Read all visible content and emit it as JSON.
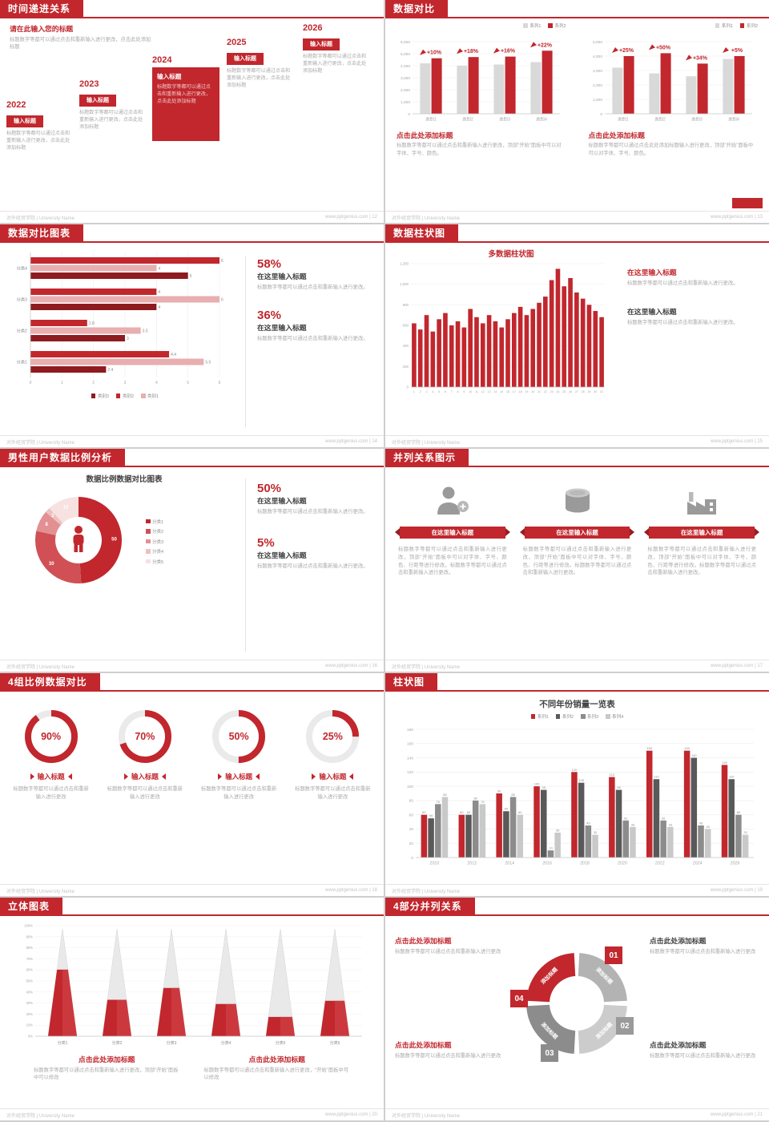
{
  "theme": {
    "accent": "#c1272d",
    "dark_text": "#404040",
    "gray_text": "#ababab",
    "light_bar": "#d9d9d9"
  },
  "footer": {
    "left": "对外经贸学院 | University Name",
    "site": "www.pptgenius.com"
  },
  "s12": {
    "title": "时间递进关系",
    "page": "12",
    "intro_title": "请在此输入您的标题",
    "intro_text": "标题数字等都可以通过点击和重新输入进行更改，点击此处添加标题",
    "items": [
      {
        "year": "2022",
        "tag": "输入标题",
        "body": "标题数字等都可以通过点击和重新输入进行更改，点击此处添加标题",
        "highlight": false
      },
      {
        "year": "2023",
        "tag": "输入标题",
        "body": "标题数字等都可以通过点击和重新输入进行更改，点击此处添加标题",
        "highlight": false
      },
      {
        "year": "2024",
        "tag": "输入标题",
        "body": "标题数字等都可以通过点击和重新输入进行更改，点击此处添加标题",
        "highlight": true
      },
      {
        "year": "2025",
        "tag": "输入标题",
        "body": "标题数字等都可以通过点击和重新输入进行更改，点击此处添加标题",
        "highlight": false
      },
      {
        "year": "2026",
        "tag": "输入标题",
        "body": "标题数字等都可以通过点击和重新输入进行更改，点击此处添加标题",
        "highlight": false
      }
    ]
  },
  "s13": {
    "title": "数据对比",
    "page": "13",
    "legend": [
      {
        "name": "系列1",
        "color": "#d9d9d9"
      },
      {
        "name": "系列2",
        "color": "#c1272d"
      }
    ],
    "panels": [
      {
        "heading": "点击此处添加标题",
        "body": "标题数字等都可以通过点击和重新输入进行更改，顶部“开始”面板中可以对字体、字号、颜色。",
        "chart": {
          "type": "bar",
          "categories": [
            "类别1",
            "类别2",
            "类别3",
            "类别4"
          ],
          "series": [
            {
              "name": "系列1",
              "color": "#d9d9d9",
              "values": [
                4200,
                4000,
                4100,
                4300
              ]
            },
            {
              "name": "系列2",
              "color": "#c1272d",
              "values": [
                4620,
                4720,
                4760,
                5250
              ]
            }
          ],
          "group_labels": [
            "+10%",
            "+18%",
            "+16%",
            "+22%"
          ],
          "ymax": 6000,
          "yticks": [
            "6,000",
            "5,000",
            "4,000",
            "3,000",
            "2,000",
            "1,000",
            "0"
          ]
        }
      },
      {
        "heading": "点击此处添加标题",
        "body": "标题数字等都可以通过点击此处添加标题输入进行更改，顶部“开始”面板中可以对字体、字号、颜色。",
        "chart": {
          "type": "bar",
          "categories": [
            "类别1",
            "类别2",
            "类别3",
            "类别4"
          ],
          "series": [
            {
              "name": "系列1",
              "color": "#d9d9d9",
              "values": [
                3200,
                2800,
                2600,
                3800
              ]
            },
            {
              "name": "系列2",
              "color": "#c1272d",
              "values": [
                4000,
                4200,
                3480,
                4000
              ]
            }
          ],
          "group_labels": [
            "+25%",
            "+50%",
            "+34%",
            "+5%"
          ],
          "ymax": 5000,
          "yticks": [
            "5,000",
            "4,000",
            "3,000",
            "2,000",
            "1,000",
            "0"
          ]
        }
      }
    ]
  },
  "s14": {
    "title": "数据对比图表",
    "page": "14",
    "legend": [
      {
        "name": "类别3",
        "color": "#8e1b20"
      },
      {
        "name": "类别2",
        "color": "#c1272d"
      },
      {
        "name": "类别1",
        "color": "#e8aeb0"
      }
    ],
    "chart": {
      "type": "bar",
      "orientation": "horizontal",
      "xmax": 6,
      "xticks": [
        "0",
        "1",
        "2",
        "3",
        "4",
        "5",
        "6"
      ],
      "series_colors": [
        "#c1272d",
        "#e8aeb0",
        "#8e1b20"
      ],
      "groups": [
        {
          "label": "分类4",
          "values": [
            6,
            4,
            5
          ]
        },
        {
          "label": "分类3",
          "values": [
            4,
            6,
            4
          ]
        },
        {
          "label": "分类2",
          "values": [
            1.8,
            3.5,
            3
          ]
        },
        {
          "label": "分类1",
          "values": [
            4.4,
            5.5,
            2.4
          ]
        }
      ]
    },
    "stats": [
      {
        "pct": "58%",
        "head": "在这里输入标题",
        "body": "标题数字等都可以通过点击和重新输入进行更改。"
      },
      {
        "pct": "36%",
        "head": "在这里输入标题",
        "body": "标题数字等都可以通过点击和重新输入进行更改。"
      }
    ]
  },
  "s15": {
    "title": "数据柱状图",
    "page": "15",
    "chart": {
      "type": "bar",
      "heading": "多数据柱状图",
      "ymax": 1200,
      "yticks": [
        "1,200",
        "1,000",
        "800",
        "600",
        "400",
        "200",
        "0"
      ],
      "values": [
        620,
        560,
        700,
        540,
        660,
        720,
        600,
        640,
        580,
        760,
        680,
        620,
        700,
        640,
        580,
        660,
        720,
        780,
        700,
        760,
        820,
        880,
        1040,
        1150,
        980,
        1060,
        920,
        860,
        800,
        740,
        680
      ]
    },
    "blocks": [
      {
        "head": "在这里输入标题",
        "body": "标题数字等都可以通过点击和重新输入进行更改。"
      },
      {
        "head": "在这里输入标题",
        "body": "标题数字等都可以通过点击和重新输入进行更改。"
      }
    ]
  },
  "s16": {
    "title": "男性用户数据比例分析",
    "page": "16",
    "chart_title": "数据比例数据对比图表",
    "donut": {
      "type": "pie",
      "values": [
        50,
        30,
        8,
        2,
        12
      ],
      "labels": [
        "50",
        "30",
        "8",
        "2",
        "12"
      ],
      "colors": [
        "#c1272d",
        "#d05056",
        "#e39093",
        "#eec0c1",
        "#f7e1e1"
      ]
    },
    "legend": [
      {
        "name": "分类1",
        "color": "#c1272d"
      },
      {
        "name": "分类2",
        "color": "#d05056"
      },
      {
        "name": "分类3",
        "color": "#e39093"
      },
      {
        "name": "分类4",
        "color": "#eec0c1"
      },
      {
        "name": "分类5",
        "color": "#f7e1e1"
      }
    ],
    "stats": [
      {
        "pct": "50%",
        "head": "在这里输入标题",
        "body": "标题数字等都可以通过点击和重新输入进行更改。"
      },
      {
        "pct": "5%",
        "head": "在这里输入标题",
        "body": "标题数字等都可以通过点击和重新输入进行更改。"
      }
    ]
  },
  "s17": {
    "title": "并列关系图示",
    "page": "17",
    "cols": [
      {
        "icon": "person-plus",
        "head": "在这里输入标题",
        "body": "标题数字等都可以通过点击和重新输入进行更改，顶部“开始”面板中可以对字体、字号、颜色、行距等进行修改。标题数字等都可以通过点击和重新输入进行更改。"
      },
      {
        "icon": "database",
        "head": "在这里输入标题",
        "body": "标题数字等都可以通过点击和重新输入进行更改，顶部“开始”面板中可以对字体、字号、颜色、行距等进行修改。标题数字等都可以通过点击和重新输入进行更改。"
      },
      {
        "icon": "factory",
        "head": "在这里输入标题",
        "body": "标题数字等都可以通过点击和重新输入进行更改，顶部“开始”面板中可以对字体、字号、颜色、行距等进行修改。标题数字等都可以通过点击和重新输入进行更改。"
      }
    ]
  },
  "s18": {
    "title": "4组比例数据对比",
    "page": "18",
    "items": [
      {
        "pct": "90%",
        "value": 90,
        "head": "输入标题",
        "body": "标题数字等都可以通过点击和重新输入进行更改"
      },
      {
        "pct": "70%",
        "value": 70,
        "head": "输入标题",
        "body": "标题数字等都可以通过点击和重新输入进行更改"
      },
      {
        "pct": "50%",
        "value": 50,
        "head": "输入标题",
        "body": "标题数字等都可以通过点击和重新输入进行更改"
      },
      {
        "pct": "25%",
        "value": 25,
        "head": "输入标题",
        "body": "标题数字等都可以通过点击和重新输入进行更改"
      }
    ]
  },
  "s19": {
    "title": "柱状图",
    "page": "19",
    "chart": {
      "type": "bar",
      "heading": "不同年份销量一览表",
      "categories": [
        "2010",
        "2012",
        "2014",
        "2016",
        "2018",
        "2020",
        "2022",
        "2024",
        "2026"
      ],
      "series": [
        {
          "name": "系列1",
          "color": "#c1272d",
          "values": [
            60,
            60,
            90,
            100,
            120,
            113,
            150,
            150,
            130
          ]
        },
        {
          "name": "系列2",
          "color": "#595959",
          "values": [
            55,
            60,
            65,
            95,
            105,
            95,
            110,
            140,
            110
          ]
        },
        {
          "name": "系列3",
          "color": "#8c8c8c",
          "values": [
            75,
            80,
            85,
            10,
            45,
            52,
            52,
            45,
            60
          ]
        },
        {
          "name": "系列4",
          "color": "#c9c9c9",
          "values": [
            85,
            75,
            60,
            35,
            32,
            43,
            43,
            40,
            32
          ]
        }
      ],
      "ymax": 180,
      "yticks": [
        "180",
        "160",
        "140",
        "120",
        "100",
        "80",
        "60",
        "40",
        "20",
        "0"
      ]
    }
  },
  "s20": {
    "title": "立体图表",
    "page": "20",
    "chart": {
      "type": "cone",
      "categories": [
        "分类1",
        "分类2",
        "分类3",
        "分类4",
        "分类5",
        "分类6"
      ],
      "fills": [
        0.62,
        0.34,
        0.45,
        0.3,
        0.18,
        0.33
      ],
      "yticks": [
        "100%",
        "90%",
        "80%",
        "70%",
        "60%",
        "50%",
        "40%",
        "30%",
        "20%",
        "10%",
        "0%"
      ]
    },
    "blocks": [
      {
        "head": "点击此处添加标题",
        "body": "标题数字等都可以通过点击和重新输入进行更改，顶部“开始”面板中可以修改"
      },
      {
        "head": "点击此处添加标题",
        "body": "标题数字等都可以通过点击和重新输入进行更改，“开始”面板中可以修改"
      }
    ]
  },
  "s21": {
    "title": "4部分并列关系",
    "page": "21",
    "segments": [
      {
        "num": "04",
        "quad": "tl",
        "label": "添加标题",
        "seg_color": "#c1272d",
        "box_color": "#c1272d"
      },
      {
        "num": "01",
        "quad": "tr",
        "label": "添加标题",
        "seg_color": "#b3b3b3",
        "box_color": "#c1272d"
      },
      {
        "num": "02",
        "quad": "br",
        "label": "添加标题",
        "seg_color": "#cccccc",
        "box_color": "#9a9a9a"
      },
      {
        "num": "03",
        "quad": "bl",
        "label": "添加标题",
        "seg_color": "#8c8c8c",
        "box_color": "#8c8c8c"
      }
    ],
    "blocks": [
      {
        "head": "点击此处添加标题",
        "body": "标题数字等都可以通过点击和重新输入进行更改"
      },
      {
        "head": "点击此处添加标题",
        "body": "标题数字等都可以通过点击和重新输入进行更改"
      },
      {
        "head": "点击此处添加标题",
        "body": "标题数字等都可以通过点击和重新输入进行更改"
      },
      {
        "head": "点击此处添加标题",
        "body": "标题数字等都可以通过点击和重新输入进行更改"
      }
    ]
  }
}
